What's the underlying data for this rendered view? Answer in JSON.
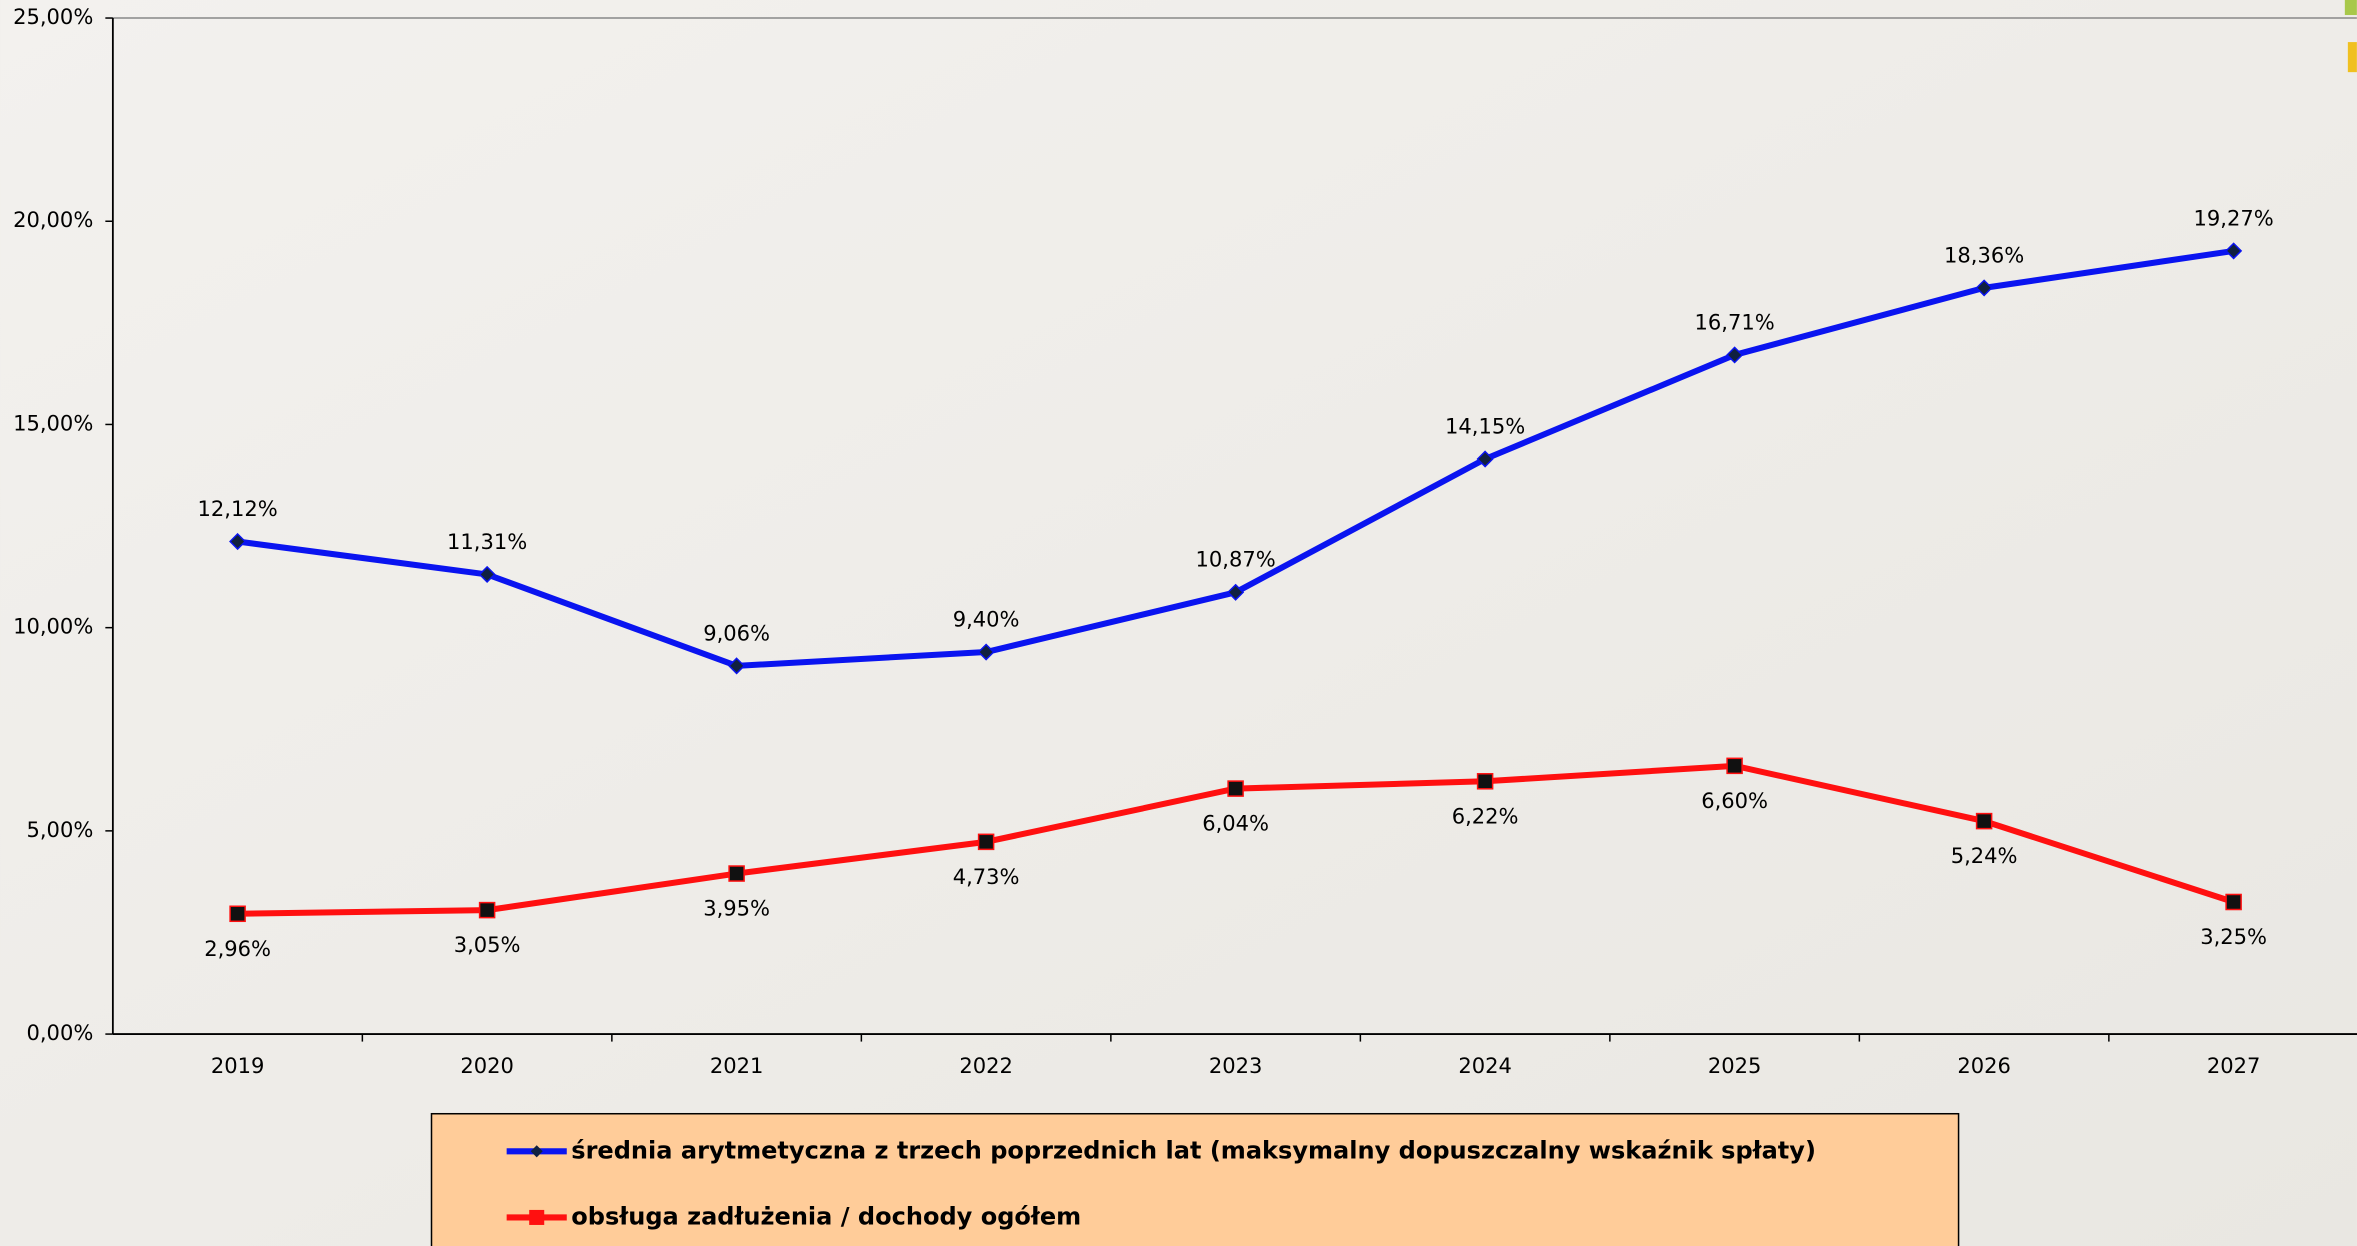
{
  "chart_data": {
    "type": "line",
    "categories": [
      "2019",
      "2020",
      "2021",
      "2022",
      "2023",
      "2024",
      "2025",
      "2026",
      "2027"
    ],
    "series": [
      {
        "name": "średnia arytmetyczna z trzech poprzednich lat (maksymalny dopuszczalny wskaźnik spłaty)",
        "color": "#0a14f0",
        "values": [
          12.12,
          11.31,
          9.06,
          9.4,
          10.87,
          14.15,
          16.71,
          18.36,
          19.27
        ],
        "value_labels": [
          "12,12%",
          "11,31%",
          "9,06%",
          "9,40%",
          "10,87%",
          "14,15%",
          "16,71%",
          "18,36%",
          "19,27%"
        ]
      },
      {
        "name": "obsługa zadłużenia / dochody ogółem",
        "color": "#ff1010",
        "values": [
          2.96,
          3.05,
          3.95,
          4.73,
          6.04,
          6.22,
          6.6,
          5.24,
          3.25
        ],
        "value_labels": [
          "2,96%",
          "3,05%",
          "3,95%",
          "4,73%",
          "6,04%",
          "6,22%",
          "6,60%",
          "5,24%",
          "3,25%"
        ]
      }
    ],
    "ylim": [
      0,
      25
    ],
    "yticks": [
      {
        "value": 0,
        "label": "0,00%"
      },
      {
        "value": 5,
        "label": "5,00%"
      },
      {
        "value": 10,
        "label": "10,00%"
      },
      {
        "value": 15,
        "label": "15,00%"
      },
      {
        "value": 20,
        "label": "20,00%"
      },
      {
        "value": 25,
        "label": "25,00%"
      }
    ]
  }
}
